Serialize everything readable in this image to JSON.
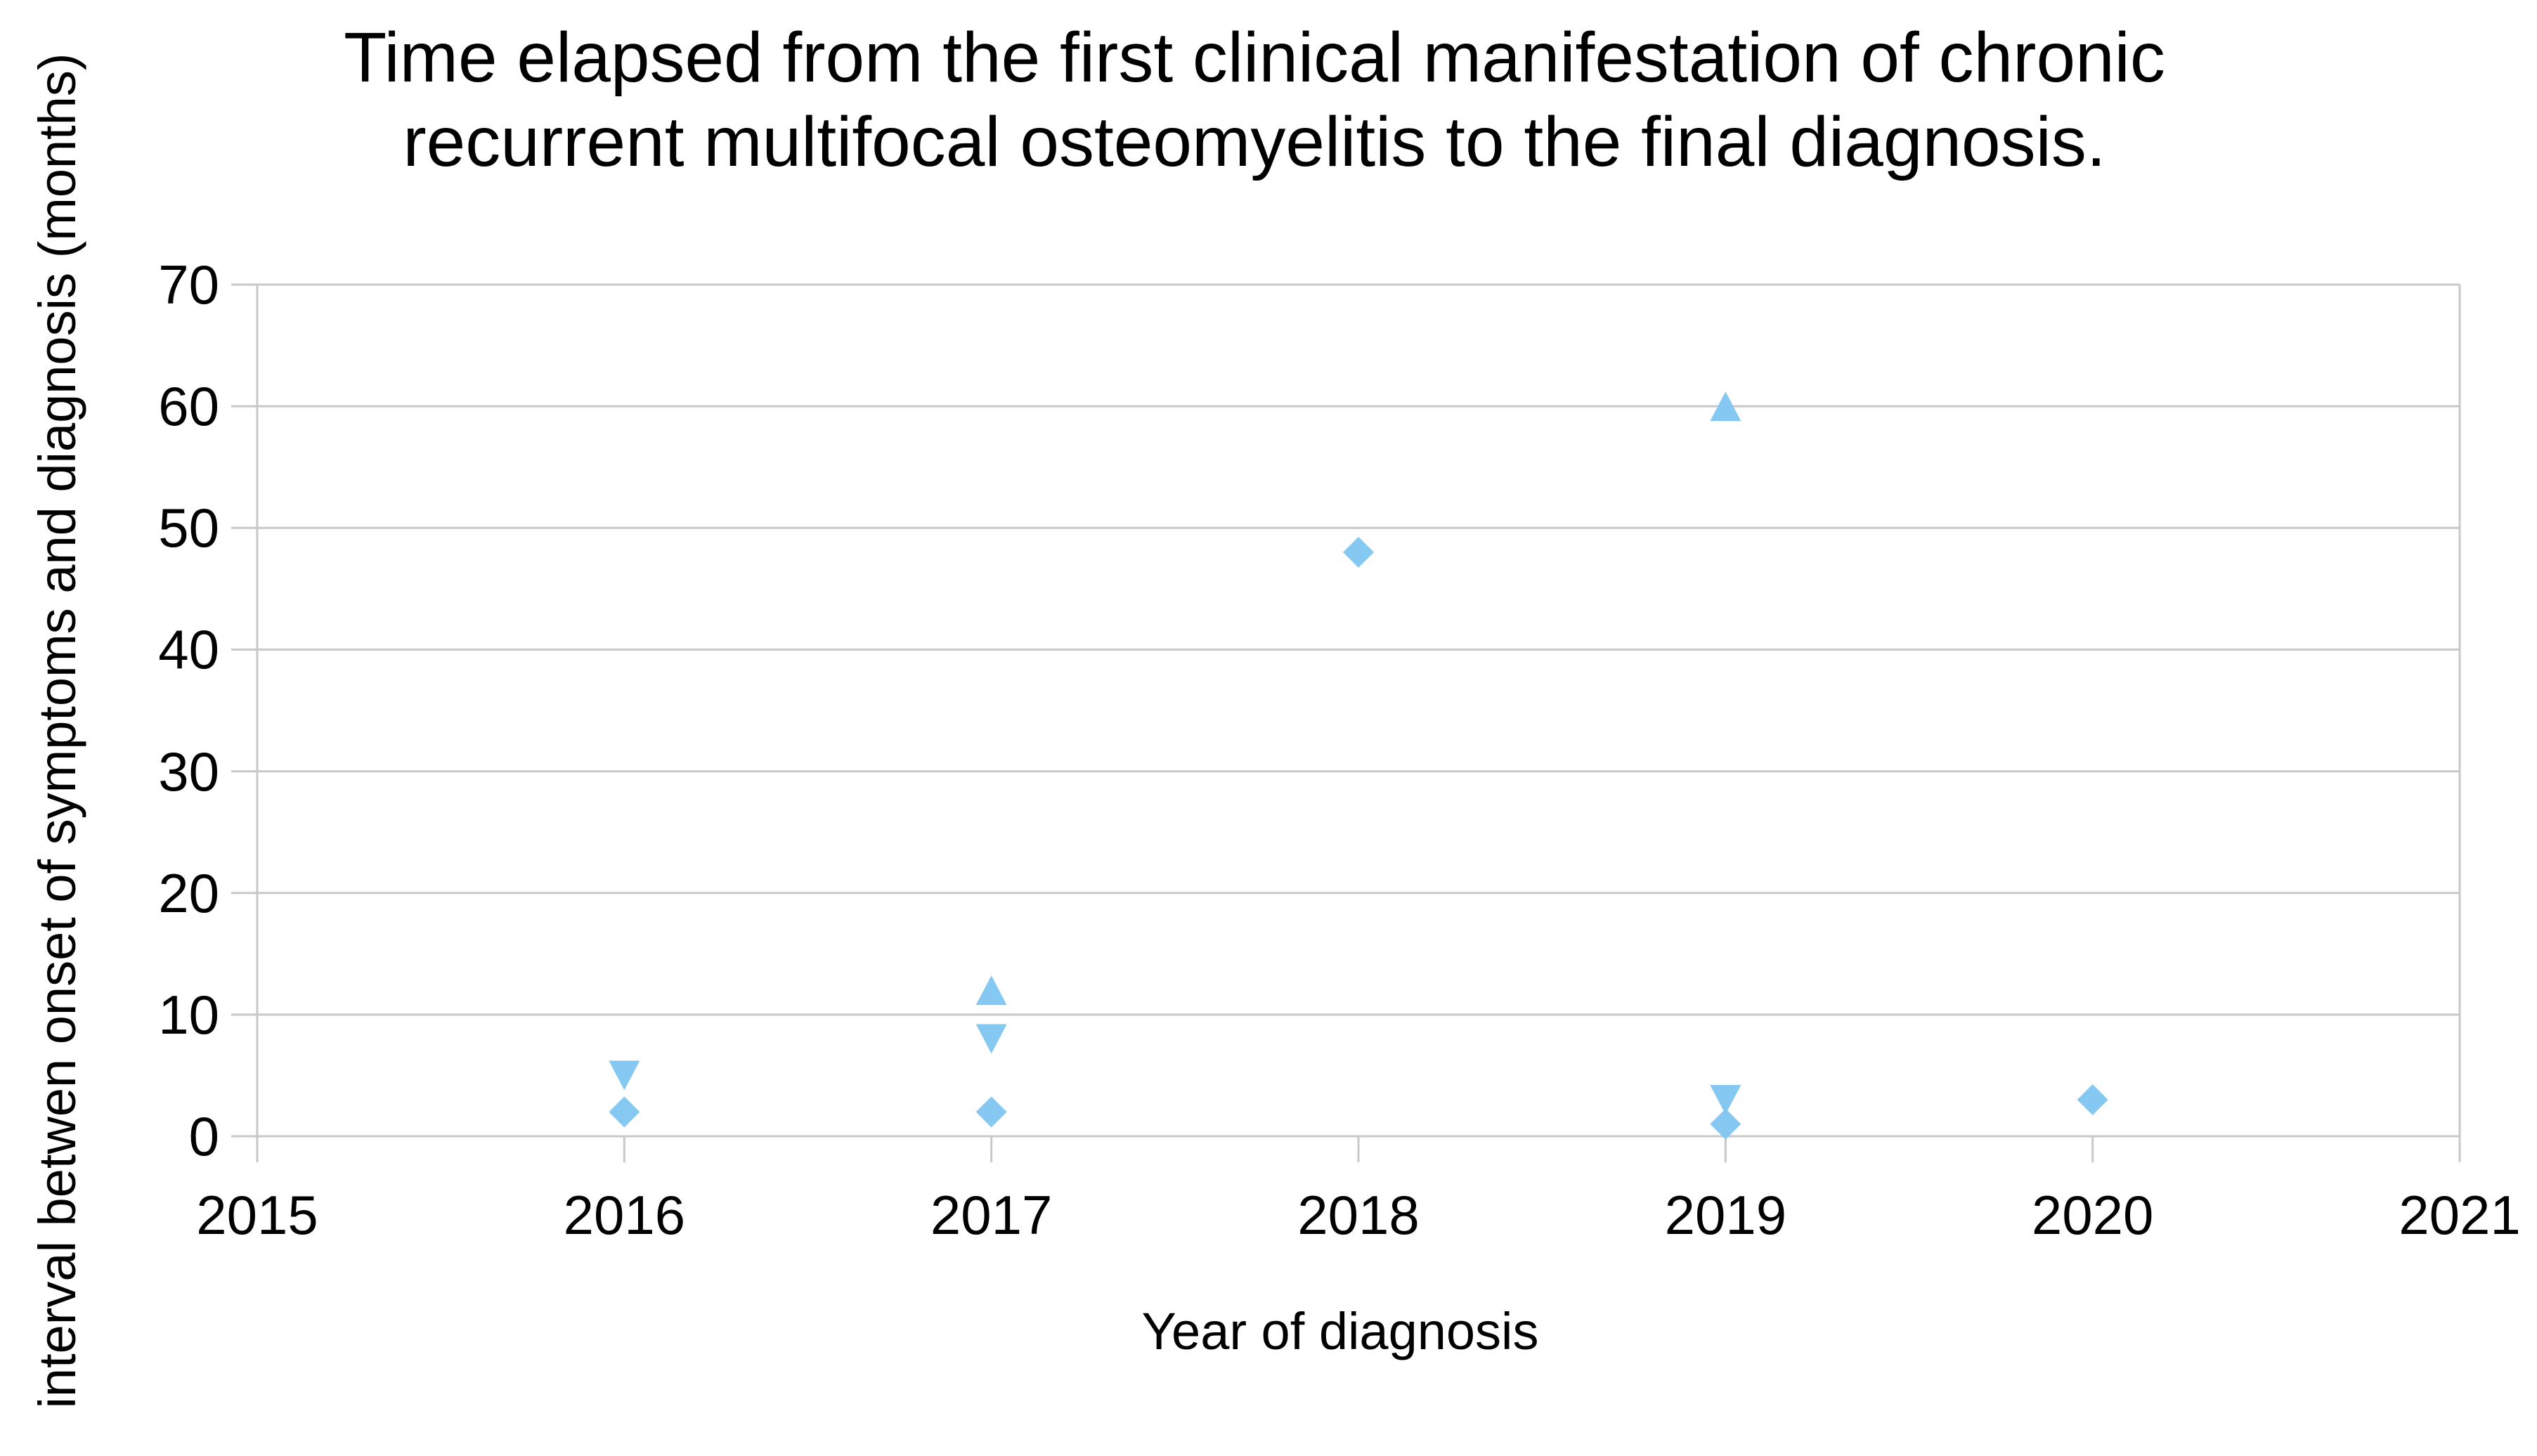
{
  "title": {
    "line1": "Time elapsed from the first clinical manifestation of chronic",
    "line2": "recurrent multifocal osteomyelitis to the final diagnosis."
  },
  "colors": {
    "marker": "#85C9F2",
    "grid": "#C8C8C8",
    "axis": "#C8C8C8",
    "text": "#000000",
    "background": "#FFFFFF"
  },
  "chart_data": {
    "type": "scatter",
    "title": "Time elapsed from the first clinical manifestation of chronic recurrent multifocal osteomyelitis to the final diagnosis.",
    "xlabel": "Year of diagnosis",
    "ylabel": "interval betwen onset of symptoms and diagnosis (months)",
    "xlim": [
      2015,
      2021
    ],
    "ylim": [
      0,
      70
    ],
    "x_ticks": [
      2015,
      2016,
      2017,
      2018,
      2019,
      2020,
      2021
    ],
    "y_ticks": [
      0,
      10,
      20,
      30,
      40,
      50,
      60,
      70
    ],
    "grid": "horizontal gridlines on, legend off",
    "marker_color": "#85C9F2",
    "series": [
      {
        "name": "diamond-markers",
        "marker": "diamond",
        "points": [
          {
            "x": 2016,
            "y": 2
          },
          {
            "x": 2017,
            "y": 2
          },
          {
            "x": 2018,
            "y": 48
          },
          {
            "x": 2019,
            "y": 1
          },
          {
            "x": 2020,
            "y": 3
          }
        ]
      },
      {
        "name": "triangle-up-markers",
        "marker": "triangle-up",
        "points": [
          {
            "x": 2017,
            "y": 12
          },
          {
            "x": 2019,
            "y": 60
          }
        ]
      },
      {
        "name": "triangle-down-markers",
        "marker": "triangle-down",
        "points": [
          {
            "x": 2016,
            "y": 5
          },
          {
            "x": 2017,
            "y": 8
          },
          {
            "x": 2019,
            "y": 3
          }
        ]
      }
    ]
  }
}
